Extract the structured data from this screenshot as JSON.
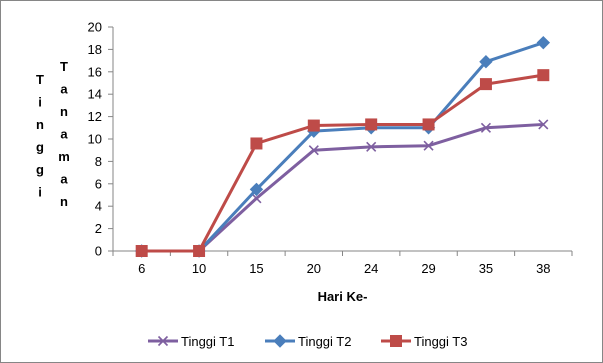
{
  "chart_data": {
    "type": "line",
    "xlabel": "Hari Ke-",
    "ylabel": "Tinggi Tanaman",
    "ylabel_words": [
      "Tinggi",
      "Tanaman"
    ],
    "ylim": [
      0,
      20
    ],
    "yticks": [
      0,
      2,
      4,
      6,
      8,
      10,
      12,
      14,
      16,
      18,
      20
    ],
    "grid": false,
    "legend_position": "bottom",
    "categories": [
      "6",
      "10",
      "15",
      "20",
      "24",
      "29",
      "35",
      "38"
    ],
    "series": [
      {
        "name": "Tinggi T1",
        "color": "#7E5FA0",
        "marker": "x",
        "values": [
          0,
          0,
          4.7,
          9.0,
          9.3,
          9.4,
          11.0,
          11.3
        ]
      },
      {
        "name": "Tinggi T2",
        "color": "#4A7EBB",
        "marker": "diamond",
        "values": [
          0,
          0,
          5.5,
          10.7,
          11.0,
          11.0,
          16.9,
          18.6
        ]
      },
      {
        "name": "Tinggi T3",
        "color": "#BE4B48",
        "marker": "square",
        "values": [
          0,
          0,
          9.6,
          11.2,
          11.3,
          11.3,
          14.9,
          15.7
        ]
      }
    ]
  }
}
